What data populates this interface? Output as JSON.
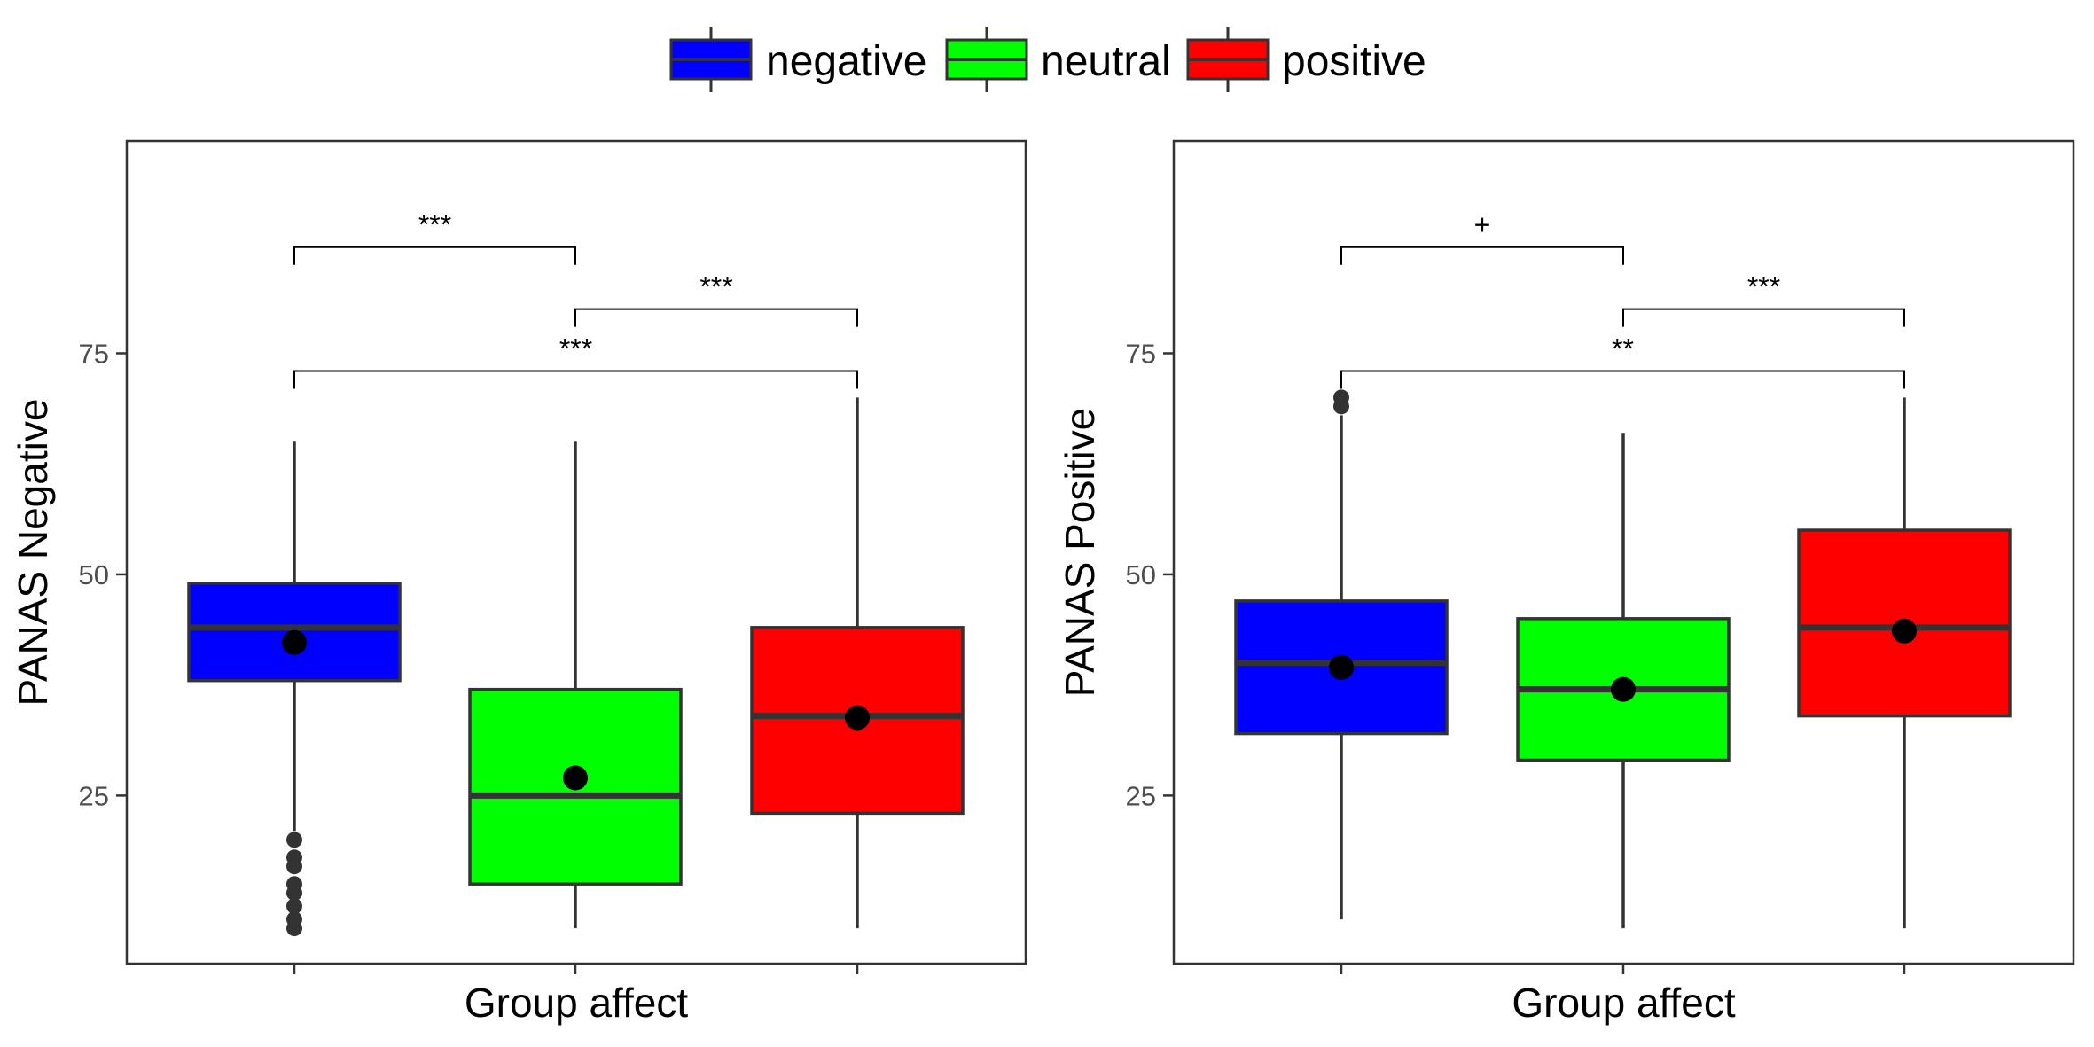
{
  "legend": {
    "items": [
      {
        "label": "negative",
        "color": "#0000FF"
      },
      {
        "label": "neutral",
        "color": "#00FF00"
      },
      {
        "label": "positive",
        "color": "#FF0000"
      }
    ]
  },
  "chart_data": [
    {
      "type": "box",
      "xlabel": "Group affect",
      "ylabel": "PANAS Negative",
      "ylim": [
        6,
        99
      ],
      "yticks": [
        25,
        50,
        75
      ],
      "categories": [
        "negative",
        "neutral",
        "positive"
      ],
      "boxes": [
        {
          "group": "negative",
          "color": "#0000FF",
          "whisker_low": 21,
          "q1": 38,
          "median": 44,
          "q3": 49,
          "whisker_high": 65,
          "mean": 42.3,
          "outliers": [
            20,
            18,
            17,
            15,
            14,
            12.5,
            11,
            10
          ]
        },
        {
          "group": "neutral",
          "color": "#00FF00",
          "whisker_low": 10,
          "q1": 15,
          "median": 25,
          "q3": 37,
          "whisker_high": 65,
          "mean": 27,
          "outliers": []
        },
        {
          "group": "positive",
          "color": "#FF0000",
          "whisker_low": 10,
          "q1": 23,
          "median": 34,
          "q3": 44,
          "whisker_high": 70,
          "mean": 33.8,
          "outliers": []
        }
      ],
      "comparisons": [
        {
          "from": "negative",
          "to": "neutral",
          "y": 87,
          "label": "***"
        },
        {
          "from": "neutral",
          "to": "positive",
          "y": 80,
          "label": "***"
        },
        {
          "from": "negative",
          "to": "positive",
          "y": 73,
          "label": "***"
        }
      ]
    },
    {
      "type": "box",
      "xlabel": "Group affect",
      "ylabel": "PANAS Positive",
      "ylim": [
        6,
        99
      ],
      "yticks": [
        25,
        50,
        75
      ],
      "categories": [
        "negative",
        "neutral",
        "positive"
      ],
      "boxes": [
        {
          "group": "negative",
          "color": "#0000FF",
          "whisker_low": 11,
          "q1": 32,
          "median": 40,
          "q3": 47,
          "whisker_high": 68,
          "mean": 39.5,
          "outliers": [
            69,
            70
          ]
        },
        {
          "group": "neutral",
          "color": "#00FF00",
          "whisker_low": 10,
          "q1": 29,
          "median": 37,
          "q3": 45,
          "whisker_high": 66,
          "mean": 37,
          "outliers": []
        },
        {
          "group": "positive",
          "color": "#FF0000",
          "whisker_low": 10,
          "q1": 34,
          "median": 44,
          "q3": 55,
          "whisker_high": 70,
          "mean": 43.6,
          "outliers": []
        }
      ],
      "comparisons": [
        {
          "from": "negative",
          "to": "neutral",
          "y": 87,
          "label": "+"
        },
        {
          "from": "neutral",
          "to": "positive",
          "y": 80,
          "label": "***"
        },
        {
          "from": "negative",
          "to": "positive",
          "y": 73,
          "label": "**"
        }
      ]
    }
  ]
}
